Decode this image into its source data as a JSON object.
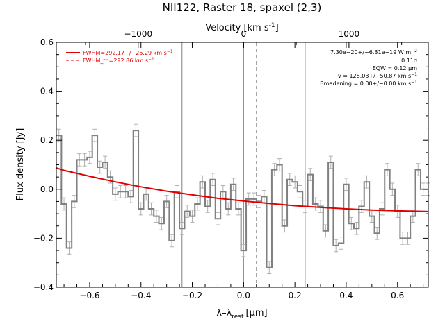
{
  "chart_data": {
    "type": "step",
    "title": "NII122, Raster 18, spaxel (2,3)",
    "xlabel": "λ–λ",
    "xlabel_sub": "rest",
    "xlabel_unit": "[μm]",
    "ylabel": "Flux density [Jy]",
    "top_axis": {
      "label_main": "Velocity [km s",
      "label_sup": "-1",
      "label_end": "]",
      "ticks": [
        -1000,
        0,
        1000
      ],
      "tick_labels": [
        "−1000",
        "0",
        "1000"
      ],
      "velocity_per_micron": 2434.5
    },
    "xlim": [
      -0.73,
      0.72
    ],
    "ylim": [
      -0.4,
      0.6
    ],
    "xticks": [
      -0.6,
      -0.4,
      -0.2,
      0.0,
      0.2,
      0.4,
      0.6
    ],
    "xtick_labels": [
      "−0.6",
      "−0.4",
      "−0.2",
      "0.0",
      "0.2",
      "0.4",
      "0.6"
    ],
    "yticks": [
      -0.4,
      -0.2,
      0.0,
      0.2,
      0.4,
      0.6
    ],
    "ytick_labels": [
      "−0.4",
      "−0.2",
      "0.0",
      "0.2",
      "0.4",
      "0.6"
    ],
    "spectrum": {
      "color": "#808080",
      "bin_width": 0.0202,
      "x": [
        -0.72,
        -0.7,
        -0.68,
        -0.66,
        -0.64,
        -0.62,
        -0.6,
        -0.58,
        -0.56,
        -0.54,
        -0.52,
        -0.5,
        -0.48,
        -0.46,
        -0.44,
        -0.42,
        -0.4,
        -0.38,
        -0.36,
        -0.34,
        -0.32,
        -0.3,
        -0.28,
        -0.26,
        -0.24,
        -0.22,
        -0.2,
        -0.18,
        -0.16,
        -0.14,
        -0.12,
        -0.1,
        -0.08,
        -0.06,
        -0.04,
        -0.02,
        0.0,
        0.02,
        0.04,
        0.06,
        0.08,
        0.1,
        0.12,
        0.14,
        0.16,
        0.18,
        0.2,
        0.22,
        0.24,
        0.26,
        0.28,
        0.3,
        0.32,
        0.34,
        0.36,
        0.38,
        0.4,
        0.42,
        0.44,
        0.46,
        0.48,
        0.5,
        0.52,
        0.54,
        0.56,
        0.58,
        0.6,
        0.62,
        0.64,
        0.66,
        0.68,
        0.7,
        0.72
      ],
      "y": [
        0.22,
        -0.06,
        -0.24,
        -0.05,
        0.12,
        0.12,
        0.13,
        0.22,
        0.09,
        0.11,
        0.05,
        -0.02,
        -0.01,
        -0.01,
        -0.03,
        0.24,
        -0.08,
        -0.02,
        -0.08,
        -0.11,
        -0.14,
        -0.05,
        -0.21,
        -0.01,
        -0.16,
        -0.09,
        -0.11,
        -0.06,
        0.03,
        -0.07,
        0.04,
        -0.12,
        -0.01,
        -0.08,
        0.02,
        -0.08,
        -0.25,
        -0.04,
        -0.04,
        -0.05,
        -0.03,
        -0.32,
        0.08,
        0.1,
        -0.15,
        0.04,
        0.03,
        -0.01,
        -0.07,
        0.06,
        -0.06,
        -0.07,
        -0.17,
        0.11,
        -0.23,
        -0.22,
        0.02,
        -0.14,
        -0.16,
        -0.07,
        0.03,
        -0.11,
        -0.18,
        -0.08,
        0.08,
        0.0,
        -0.09,
        -0.2,
        -0.2,
        -0.11,
        0.08,
        0.0,
        0.0
      ],
      "errors": [
        0.025,
        0.025,
        0.025,
        0.025,
        0.025,
        0.025,
        0.025,
        0.025,
        0.025,
        0.025,
        0.025,
        0.025,
        0.025,
        0.025,
        0.025,
        0.025,
        0.025,
        0.025,
        0.025,
        0.025,
        0.025,
        0.025,
        0.025,
        0.025,
        0.025,
        0.025,
        0.025,
        0.025,
        0.025,
        0.025,
        0.025,
        0.025,
        0.025,
        0.025,
        0.025,
        0.025,
        0.025,
        0.025,
        0.025,
        0.025,
        0.025,
        0.025,
        0.025,
        0.025,
        0.025,
        0.025,
        0.025,
        0.025,
        0.025,
        0.025,
        0.025,
        0.025,
        0.025,
        0.025,
        0.025,
        0.025,
        0.025,
        0.025,
        0.025,
        0.025,
        0.025,
        0.025,
        0.025,
        0.025,
        0.025,
        0.025,
        0.025,
        0.025,
        0.025,
        0.025,
        0.025,
        0.025,
        0.025
      ]
    },
    "fit": {
      "color": "#e00000",
      "x": [
        -0.73,
        -0.7,
        -0.6,
        -0.5,
        -0.4,
        -0.3,
        -0.2,
        -0.1,
        0.0,
        0.1,
        0.2,
        0.3,
        0.4,
        0.5,
        0.6,
        0.72
      ],
      "y": [
        0.087,
        0.077,
        0.053,
        0.03,
        0.01,
        -0.008,
        -0.023,
        -0.037,
        -0.048,
        -0.058,
        -0.067,
        -0.074,
        -0.08,
        -0.085,
        -0.088,
        -0.091
      ]
    },
    "vertical_lines": [
      {
        "x": -0.24,
        "style": "solid"
      },
      {
        "x": 0.0,
        "style": "solid"
      },
      {
        "x": 0.05,
        "style": "dashed"
      },
      {
        "x": 0.24,
        "style": "solid"
      }
    ],
    "legend": {
      "position": "top-left",
      "entries": [
        {
          "label": "FWHM=292.17+/−25.29 km s",
          "sup": "−1",
          "color": "#e00000",
          "style": "solid"
        },
        {
          "label": "FWHM_th=292.86 km s",
          "sup": "−1",
          "color": "#e00000",
          "style": "dashed"
        }
      ]
    },
    "annotations": {
      "position": "top-right",
      "lines": [
        {
          "text": "7.30e−20+/−6.31e−19 W m",
          "sup": "−2"
        },
        {
          "text": "0.11σ",
          "sup": ""
        },
        {
          "text": "EQW = 0.12 μm",
          "sup": ""
        },
        {
          "text": "v = 128.03+/−50.87 km s",
          "sup": "−1"
        },
        {
          "text": "Broadening = 0.00+/−0.00 km s",
          "sup": "−1"
        }
      ]
    }
  }
}
